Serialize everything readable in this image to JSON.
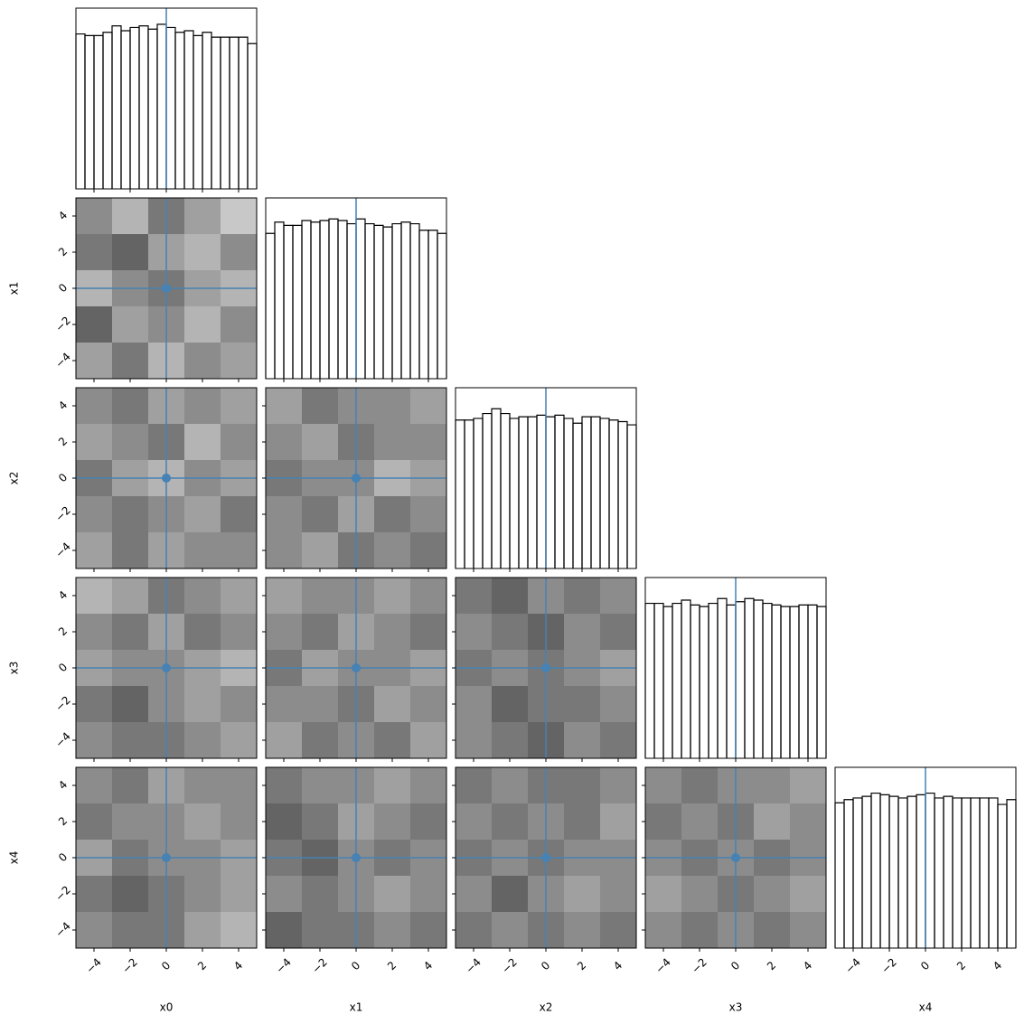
{
  "chart_data": {
    "type": "corner",
    "params": [
      "x0",
      "x1",
      "x2",
      "x3",
      "x4"
    ],
    "truths": [
      0,
      0,
      0,
      0,
      0
    ],
    "truth_color": "#4682b4",
    "lim": [
      -5,
      5
    ],
    "ticks": [
      {
        "value": -4,
        "label": "−4"
      },
      {
        "value": -2,
        "label": "−2"
      },
      0,
      2,
      4
    ],
    "bins": [
      -5,
      -4.5,
      -4,
      -3.5,
      -3,
      -2.5,
      -2,
      -1.5,
      -1,
      -0.5,
      0,
      0.5,
      1,
      1.5,
      2,
      2.5,
      3,
      3.5,
      4,
      4.5,
      5
    ],
    "histograms": [
      {
        "counts": [
          96,
          95,
          95,
          97,
          101,
          98,
          100,
          101,
          99,
          102,
          100,
          97,
          98,
          95,
          97,
          94,
          94,
          94,
          94,
          90
        ],
        "ylim": [
          0,
          112
        ]
      },
      {
        "counts": [
          90,
          97,
          95,
          95,
          98,
          97,
          98,
          99,
          98,
          96,
          99,
          96,
          95,
          94,
          96,
          97,
          96,
          92,
          92,
          90
        ],
        "ylim": [
          0,
          112
        ]
      },
      {
        "counts": [
          92,
          92,
          93,
          96,
          99,
          96,
          93,
          94,
          94,
          95,
          94,
          95,
          93,
          90,
          94,
          94,
          93,
          92,
          91,
          89
        ],
        "ylim": [
          0,
          112
        ]
      },
      {
        "counts": [
          96,
          96,
          94,
          96,
          98,
          95,
          94,
          96,
          99,
          95,
          97,
          99,
          98,
          96,
          95,
          94,
          94,
          95,
          95,
          94
        ],
        "ylim": [
          0,
          112
        ]
      },
      {
        "counts": [
          90,
          92,
          93,
          94,
          96,
          95,
          94,
          93,
          94,
          95,
          96,
          93,
          94,
          93,
          93,
          93,
          93,
          93,
          89,
          92
        ],
        "ylim": [
          0,
          112
        ]
      }
    ],
    "densities": [
      {
        "values": [
          [
            0.5,
            0.3,
            0.6,
            0.4,
            0.2
          ],
          [
            0.6,
            0.7,
            0.4,
            0.3,
            0.5
          ],
          [
            0.3,
            0.5,
            0.6,
            0.4,
            0.3
          ],
          [
            0.7,
            0.4,
            0.5,
            0.3,
            0.5
          ],
          [
            0.4,
            0.6,
            0.3,
            0.5,
            0.4
          ]
        ]
      },
      {
        "values": [
          [
            0.5,
            0.6,
            0.4,
            0.5,
            0.4
          ],
          [
            0.4,
            0.5,
            0.6,
            0.3,
            0.5
          ],
          [
            0.6,
            0.4,
            0.3,
            0.5,
            0.4
          ],
          [
            0.5,
            0.6,
            0.5,
            0.4,
            0.6
          ],
          [
            0.4,
            0.6,
            0.4,
            0.5,
            0.5
          ]
        ]
      },
      {
        "values": [
          [
            0.4,
            0.6,
            0.5,
            0.5,
            0.4
          ],
          [
            0.5,
            0.4,
            0.6,
            0.5,
            0.5
          ],
          [
            0.6,
            0.5,
            0.5,
            0.3,
            0.4
          ],
          [
            0.5,
            0.6,
            0.4,
            0.6,
            0.5
          ],
          [
            0.5,
            0.4,
            0.6,
            0.5,
            0.6
          ]
        ]
      },
      {
        "values": [
          [
            0.3,
            0.4,
            0.6,
            0.5,
            0.4
          ],
          [
            0.5,
            0.6,
            0.4,
            0.6,
            0.5
          ],
          [
            0.4,
            0.5,
            0.5,
            0.4,
            0.3
          ],
          [
            0.6,
            0.7,
            0.5,
            0.4,
            0.5
          ],
          [
            0.5,
            0.6,
            0.6,
            0.5,
            0.4
          ]
        ]
      },
      {
        "values": [
          [
            0.4,
            0.5,
            0.5,
            0.4,
            0.5
          ],
          [
            0.5,
            0.6,
            0.4,
            0.5,
            0.6
          ],
          [
            0.6,
            0.4,
            0.5,
            0.5,
            0.4
          ],
          [
            0.5,
            0.5,
            0.6,
            0.4,
            0.5
          ],
          [
            0.4,
            0.6,
            0.5,
            0.6,
            0.4
          ]
        ]
      },
      {
        "values": [
          [
            0.6,
            0.7,
            0.5,
            0.6,
            0.5
          ],
          [
            0.5,
            0.6,
            0.7,
            0.5,
            0.6
          ],
          [
            0.6,
            0.5,
            0.6,
            0.5,
            0.4
          ],
          [
            0.5,
            0.7,
            0.6,
            0.6,
            0.5
          ],
          [
            0.5,
            0.6,
            0.7,
            0.5,
            0.6
          ]
        ]
      },
      {
        "values": [
          [
            0.5,
            0.6,
            0.4,
            0.5,
            0.5
          ],
          [
            0.6,
            0.5,
            0.5,
            0.4,
            0.5
          ],
          [
            0.4,
            0.6,
            0.5,
            0.5,
            0.4
          ],
          [
            0.6,
            0.7,
            0.6,
            0.5,
            0.4
          ],
          [
            0.5,
            0.6,
            0.6,
            0.4,
            0.3
          ]
        ]
      },
      {
        "values": [
          [
            0.6,
            0.5,
            0.5,
            0.4,
            0.5
          ],
          [
            0.7,
            0.6,
            0.4,
            0.5,
            0.6
          ],
          [
            0.6,
            0.7,
            0.5,
            0.6,
            0.5
          ],
          [
            0.5,
            0.6,
            0.5,
            0.4,
            0.5
          ],
          [
            0.7,
            0.6,
            0.6,
            0.5,
            0.6
          ]
        ]
      },
      {
        "values": [
          [
            0.6,
            0.5,
            0.6,
            0.6,
            0.5
          ],
          [
            0.5,
            0.6,
            0.5,
            0.6,
            0.4
          ],
          [
            0.6,
            0.5,
            0.6,
            0.5,
            0.5
          ],
          [
            0.5,
            0.7,
            0.5,
            0.4,
            0.5
          ],
          [
            0.6,
            0.5,
            0.6,
            0.5,
            0.6
          ]
        ]
      },
      {
        "values": [
          [
            0.5,
            0.6,
            0.5,
            0.5,
            0.4
          ],
          [
            0.6,
            0.5,
            0.6,
            0.4,
            0.5
          ],
          [
            0.5,
            0.6,
            0.5,
            0.6,
            0.5
          ],
          [
            0.4,
            0.5,
            0.6,
            0.5,
            0.4
          ],
          [
            0.5,
            0.6,
            0.5,
            0.6,
            0.5
          ]
        ]
      }
    ]
  }
}
